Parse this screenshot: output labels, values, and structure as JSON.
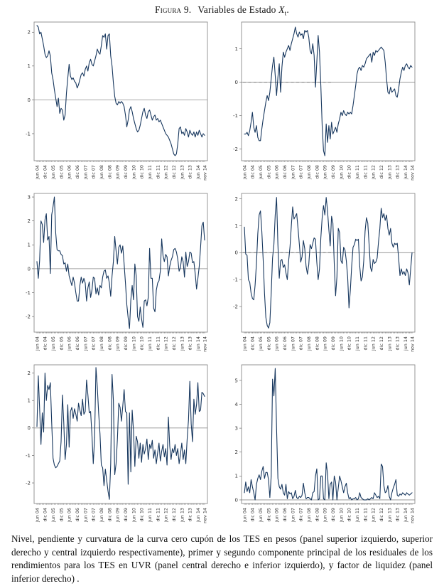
{
  "page": {
    "title": {
      "figure_label": "Figura 9.",
      "title_text": "Variables de Estado",
      "var_base": "X",
      "var_sub": "t",
      "suffix": "."
    },
    "caption": "Nivel, pendiente y curvatura de la curva cero cupón de los TES en pesos (panel superior izquierdo, superior derecho y central izquierdo respectivamente), primer y segundo componente principal de los residuales de los rendimientos para los TES en UVR (panel central derecho e inferior izquierdo), y factor de liquidez (panel inferior derecho) ."
  },
  "colors": {
    "line": "#17375e",
    "frame": "#8c8c8c",
    "zero_line": "#8c8c8c",
    "tick_text": "#333333"
  },
  "chart_data": [
    {
      "type": "line",
      "panel": "superior-izquierdo",
      "series_name": "Nivel curva cero cupón TES pesos",
      "ylim": [
        -1.8,
        2.3
      ],
      "y_ticks": [
        -1,
        0,
        1,
        2
      ],
      "x_unit": "meses desde jun 2004",
      "x_tick_months": [
        0,
        6,
        12,
        18,
        24,
        30,
        36,
        42,
        48,
        54,
        60,
        66,
        72,
        78,
        84,
        90,
        96,
        102,
        108,
        114,
        120,
        125
      ],
      "x_tick_labels": [
        "jun 04",
        "dic 04",
        "jun 05",
        "dic 05",
        "jun 06",
        "dic 06",
        "jun 07",
        "dic 07",
        "jun 08",
        "dic 08",
        "jun 09",
        "dic 09",
        "jun 10",
        "dic 10",
        "jun 11",
        "dic 11",
        "jun 12",
        "dic 12",
        "jun 13",
        "dic 13",
        "jun 14",
        "nov 14"
      ],
      "zero_line_dashed": false,
      "values": [
        2.2,
        2.15,
        1.95,
        2.0,
        1.8,
        1.6,
        1.35,
        1.25,
        1.3,
        1.45,
        1.3,
        0.8,
        0.6,
        0.3,
        0.05,
        -0.2,
        0.05,
        -0.4,
        -0.25,
        -0.3,
        -0.6,
        -0.45,
        0.2,
        0.65,
        1.05,
        0.7,
        0.6,
        0.65,
        0.55,
        0.5,
        0.35,
        0.45,
        0.6,
        0.75,
        0.8,
        0.7,
        0.9,
        1.0,
        0.85,
        1.1,
        1.2,
        1.05,
        1.0,
        1.15,
        1.3,
        1.5,
        1.4,
        1.35,
        1.6,
        1.9,
        1.85,
        1.95,
        1.5,
        1.9,
        1.95,
        1.3,
        1.0,
        0.5,
        0.1,
        -0.1,
        -0.15,
        -0.05,
        -0.1,
        -0.05,
        -0.1,
        -0.2,
        -0.45,
        -0.8,
        -0.6,
        -0.3,
        -0.2,
        -0.35,
        -0.55,
        -0.7,
        -0.85,
        -0.95,
        -0.9,
        -0.75,
        -0.55,
        -0.35,
        -0.25,
        -0.45,
        -0.55,
        -0.35,
        -0.3,
        -0.45,
        -0.6,
        -0.5,
        -0.45,
        -0.6,
        -0.55,
        -0.65,
        -0.6,
        -0.7,
        -0.8,
        -0.9,
        -1.0,
        -1.05,
        -1.1,
        -1.2,
        -1.3,
        -1.45,
        -1.6,
        -1.65,
        -1.6,
        -1.3,
        -0.85,
        -0.8,
        -1.0,
        -0.95,
        -1.05,
        -0.85,
        -0.95,
        -1.1,
        -0.9,
        -1.0,
        -1.05,
        -0.95,
        -1.1,
        -0.95,
        -1.05,
        -0.9,
        -1.0,
        -1.1,
        -1.0,
        -1.05
      ]
    },
    {
      "type": "line",
      "panel": "superior-derecho",
      "series_name": "Pendiente curva cero cupón TES pesos",
      "ylim": [
        -2.35,
        1.8
      ],
      "y_ticks": [
        -2,
        -1,
        0,
        1
      ],
      "x_unit": "meses desde jun 2004",
      "x_tick_months": [
        0,
        6,
        12,
        18,
        24,
        30,
        36,
        42,
        48,
        54,
        60,
        66,
        72,
        78,
        84,
        90,
        96,
        102,
        108,
        114,
        120,
        125
      ],
      "x_tick_labels": [
        "jun 04",
        "dic 04",
        "jun 05",
        "dic 05",
        "jun 06",
        "dic 06",
        "jun 07",
        "dic 07",
        "jun 08",
        "dic 08",
        "jun 09",
        "dic 09",
        "jun 10",
        "dic 10",
        "jun 11",
        "dic 11",
        "jun 12",
        "dic 12",
        "jun 13",
        "dic 13",
        "jun 14",
        "nov 14"
      ],
      "zero_line_dashed": true,
      "values": [
        -1.55,
        -1.55,
        -1.5,
        -1.6,
        -1.45,
        -1.2,
        -0.9,
        -1.35,
        -1.5,
        -1.3,
        -1.65,
        -1.75,
        -1.75,
        -1.4,
        -1.1,
        -0.85,
        -0.6,
        -0.4,
        -0.55,
        -0.3,
        0.1,
        0.5,
        0.75,
        0.2,
        -0.4,
        0.15,
        0.55,
        -0.3,
        0.45,
        0.9,
        0.75,
        0.9,
        1.0,
        1.1,
        0.95,
        1.15,
        1.3,
        1.45,
        1.65,
        1.45,
        1.35,
        1.5,
        1.4,
        1.45,
        1.3,
        1.55,
        1.5,
        1.55,
        1.35,
        0.95,
        0.85,
        1.15,
        0.8,
        -0.15,
        0.6,
        1.4,
        0.9,
        -0.1,
        -1.3,
        -2.05,
        -2.2,
        -1.25,
        -1.8,
        -1.3,
        -1.7,
        -1.2,
        -1.55,
        -1.45,
        -1.35,
        -1.5,
        -1.25,
        -1.1,
        -0.9,
        -1.0,
        -0.85,
        -0.95,
        -1.0,
        -0.9,
        -0.95,
        -0.9,
        -0.95,
        -0.7,
        -0.4,
        -0.1,
        0.25,
        0.4,
        0.45,
        0.35,
        0.5,
        0.45,
        0.55,
        0.7,
        0.75,
        0.8,
        0.85,
        0.6,
        0.9,
        0.8,
        0.95,
        0.9,
        0.95,
        1.0,
        1.05,
        1.0,
        0.95,
        0.6,
        0.1,
        -0.3,
        -0.35,
        -0.15,
        -0.3,
        -0.25,
        -0.2,
        -0.4,
        -0.45,
        -0.2,
        0.1,
        0.3,
        0.45,
        0.35,
        0.5,
        0.55,
        0.45,
        0.4,
        0.5,
        0.45
      ]
    },
    {
      "type": "line",
      "panel": "central-izquierdo",
      "series_name": "Curvatura curva cero cupón TES pesos",
      "ylim": [
        -2.65,
        3.15
      ],
      "y_ticks": [
        -2,
        -1,
        0,
        1,
        2,
        3
      ],
      "x_unit": "meses desde jun 2004",
      "x_tick_months": [
        0,
        6,
        12,
        18,
        24,
        30,
        36,
        42,
        48,
        54,
        60,
        66,
        72,
        78,
        84,
        90,
        96,
        102,
        108,
        114,
        120,
        125
      ],
      "x_tick_labels": [
        "jun 04",
        "dic 04",
        "jun 05",
        "dic 05",
        "jun 06",
        "dic 06",
        "jun 07",
        "dic 07",
        "jun 08",
        "dic 08",
        "jun 09",
        "dic 09",
        "jun 10",
        "dic 10",
        "jun 11",
        "dic 11",
        "jun 12",
        "dic 12",
        "jun 13",
        "dic 13",
        "jun 14",
        "nov 14"
      ],
      "zero_line_dashed": false,
      "values": [
        0.3,
        -0.4,
        0.35,
        2.0,
        1.85,
        1.1,
        2.05,
        2.3,
        1.2,
        1.35,
        -0.2,
        2.25,
        2.6,
        3.0,
        1.5,
        0.8,
        0.75,
        0.75,
        0.6,
        0.55,
        0.2,
        0.25,
        -0.1,
        0.2,
        -0.3,
        -0.5,
        -0.7,
        -0.35,
        -0.6,
        -1.0,
        -1.35,
        -1.35,
        -0.7,
        -0.35,
        -0.6,
        -0.4,
        -0.6,
        -1.35,
        -0.8,
        -0.55,
        -1.2,
        -0.9,
        -0.35,
        -0.4,
        -1.05,
        -0.8,
        -1.1,
        -0.7,
        -0.8,
        -0.35,
        -0.1,
        -0.05,
        -0.4,
        -0.3,
        -0.6,
        -1.15,
        -0.3,
        0.3,
        1.35,
        0.75,
        0.2,
        0.9,
        1.0,
        0.65,
        0.95,
        0.2,
        -0.6,
        -1.5,
        -2.05,
        -2.5,
        -1.3,
        -0.7,
        -1.3,
        0.2,
        -0.3,
        -2.0,
        -2.2,
        -1.6,
        -2.1,
        -2.45,
        -1.35,
        -1.3,
        -1.55,
        -1.2,
        0.85,
        -0.4,
        -0.4,
        -1.65,
        -1.8,
        -0.9,
        -0.6,
        -0.5,
        -0.1,
        1.25,
        0.55,
        0.3,
        0.6,
        0.5,
        -0.3,
        0.1,
        0.35,
        0.5,
        0.8,
        0.85,
        0.7,
        0.4,
        -0.1,
        0.05,
        0.5,
        0.3,
        -0.35,
        0.7,
        0.1,
        0.3,
        0.7,
        0.65,
        0.25,
        0.3,
        -0.2,
        -0.85,
        -0.4,
        0.1,
        0.9,
        1.8,
        1.95,
        1.2
      ]
    },
    {
      "type": "line",
      "panel": "central-derecho",
      "series_name": "Primer componente principal residuales TES UVR",
      "ylim": [
        -2.95,
        2.2
      ],
      "y_ticks": [
        -2,
        -1,
        0,
        1,
        2
      ],
      "x_unit": "meses desde jun 2004",
      "x_tick_months": [
        0,
        6,
        12,
        18,
        24,
        30,
        36,
        42,
        48,
        54,
        60,
        66,
        72,
        78,
        84,
        90,
        96,
        102,
        108,
        114,
        120,
        125
      ],
      "x_tick_labels": [
        "jun 04",
        "dic 04",
        "jun 05",
        "dic 05",
        "jun 06",
        "dic 06",
        "jun 07",
        "dic 07",
        "jun 08",
        "dic 08",
        "jun 09",
        "dic 09",
        "jun 10",
        "dic 10",
        "jun 11",
        "dic 11",
        "jun 12",
        "dic 12",
        "jun 13",
        "dic 13",
        "jun 14",
        "nov 14"
      ],
      "zero_line_dashed": true,
      "values": [
        0.95,
        -0.05,
        -0.1,
        -1.0,
        -1.1,
        -1.5,
        -1.7,
        -1.75,
        -1.2,
        -0.4,
        0.7,
        1.4,
        1.55,
        0.8,
        -0.25,
        -1.5,
        -2.4,
        -2.7,
        -2.8,
        -2.6,
        -1.5,
        -0.2,
        0.3,
        1.4,
        2.05,
        0.3,
        -0.95,
        -0.3,
        -0.25,
        -0.55,
        -0.45,
        -0.75,
        -1.0,
        -0.3,
        0.2,
        1.0,
        1.7,
        1.25,
        1.35,
        1.45,
        0.9,
        0.3,
        -0.35,
        -0.15,
        0.45,
        0.15,
        -0.5,
        -0.8,
        -0.45,
        0.3,
        0.15,
        0.35,
        0.55,
        0.5,
        -0.35,
        -1.0,
        -0.6,
        0.55,
        1.3,
        1.75,
        1.4,
        2.05,
        1.55,
        0.85,
        0.25,
        1.35,
        1.1,
        -0.4,
        -1.6,
        -0.9,
        0.9,
        0.75,
        -0.3,
        -0.4,
        0.2,
        0.1,
        -0.3,
        -0.9,
        -2.05,
        -1.4,
        -0.5,
        0.2,
        0.3,
        0.5,
        0.45,
        0.5,
        -0.5,
        -1.05,
        -0.9,
        -0.3,
        0.8,
        1.3,
        1.1,
        0.3,
        -0.55,
        -0.7,
        -0.25,
        -0.4,
        -0.35,
        -0.2,
        0.4,
        0.9,
        1.65,
        1.3,
        1.45,
        1.2,
        1.4,
        0.9,
        0.65,
        0.9,
        0.35,
        0.2,
        0.35,
        0.3,
        0.35,
        -0.2,
        -0.85,
        -0.6,
        -0.8,
        -0.7,
        -0.85,
        -0.6,
        -0.75,
        -1.2,
        -0.6,
        0.0
      ]
    },
    {
      "type": "line",
      "panel": "inferior-izquierdo",
      "series_name": "Segundo componente principal residuales TES UVR",
      "ylim": [
        -2.75,
        2.3
      ],
      "y_ticks": [
        -2,
        -1,
        0,
        1,
        2
      ],
      "x_unit": "meses desde jun 2004",
      "x_tick_months": [
        0,
        6,
        12,
        18,
        24,
        30,
        36,
        42,
        48,
        54,
        60,
        66,
        72,
        78,
        84,
        90,
        96,
        102,
        108,
        114,
        120,
        125
      ],
      "x_tick_labels": [
        "jun 04",
        "dic 04",
        "jun 05",
        "dic 05",
        "jun 06",
        "dic 06",
        "jun 07",
        "dic 07",
        "jun 08",
        "dic 08",
        "jun 09",
        "dic 09",
        "jun 10",
        "dic 10",
        "jun 11",
        "dic 11",
        "jun 12",
        "dic 12",
        "jun 13",
        "dic 13",
        "jun 14",
        "nov 14"
      ],
      "zero_line_dashed": false,
      "values": [
        0.05,
        1.9,
        0.7,
        -0.6,
        0.55,
        -0.15,
        2.0,
        1.0,
        1.55,
        1.4,
        1.65,
        0.2,
        -1.1,
        -1.35,
        -1.45,
        -1.4,
        -1.3,
        -1.2,
        -0.5,
        1.2,
        0.2,
        -1.15,
        -0.6,
        0.85,
        -0.7,
        0.6,
        0.75,
        0.35,
        0.7,
        0.5,
        0.25,
        0.9,
        0.65,
        0.45,
        1.05,
        0.5,
        0.6,
        1.75,
        1.2,
        0.55,
        0.6,
        -0.25,
        -1.3,
        -0.35,
        2.2,
        1.5,
        0.55,
        -0.2,
        -1.35,
        -1.45,
        -2.1,
        -1.5,
        -1.9,
        -2.3,
        -2.6,
        -1.3,
        1.95,
        1.0,
        -1.7,
        -1.3,
        -0.4,
        0.9,
        0.75,
        0.25,
        0.8,
        1.4,
        0.6,
        0.55,
        -2.05,
        0.55,
        -1.6,
        0.65,
        -0.1,
        -1.4,
        -0.3,
        -0.5,
        -1.1,
        -0.55,
        -1.25,
        -0.6,
        -0.95,
        -0.75,
        -0.4,
        -1.15,
        -0.6,
        -0.75,
        -0.45,
        -1.1,
        -0.8,
        -1.3,
        -0.9,
        -0.55,
        -1.2,
        -0.85,
        -0.6,
        -1.05,
        -0.75,
        -1.35,
        0.4,
        -0.65,
        -1.15,
        -0.75,
        -0.9,
        -0.6,
        -1.0,
        -0.75,
        -1.3,
        -0.95,
        -0.55,
        -1.15,
        -0.8,
        -1.3,
        -0.4,
        0.3,
        1.7,
        0.15,
        -0.5,
        1.05,
        0.5,
        0.85,
        1.65,
        0.6,
        0.65,
        1.3,
        1.25,
        1.15
      ]
    },
    {
      "type": "line",
      "panel": "inferior-derecho",
      "series_name": "Factor de liquidez",
      "ylim": [
        -0.15,
        5.65
      ],
      "y_ticks": [
        0,
        1,
        2,
        3,
        4,
        5
      ],
      "x_unit": "meses desde jun 2004",
      "x_tick_months": [
        0,
        6,
        12,
        18,
        24,
        30,
        36,
        42,
        48,
        54,
        60,
        66,
        72,
        78,
        84,
        90,
        96,
        102,
        108,
        114,
        120,
        125
      ],
      "x_tick_labels": [
        "jun 04",
        "dic 04",
        "jun 05",
        "dic 05",
        "jun 06",
        "dic 06",
        "jun 07",
        "dic 07",
        "jun 08",
        "dic 08",
        "jun 09",
        "dic 09",
        "jun 10",
        "dic 10",
        "jun 11",
        "dic 11",
        "jun 12",
        "dic 12",
        "jun 13",
        "dic 13",
        "jun 14",
        "nov 14"
      ],
      "zero_line_dashed": false,
      "values": [
        0.3,
        0.75,
        0.35,
        0.55,
        0.3,
        0.85,
        0.55,
        0.3,
        0.0,
        0.65,
        0.9,
        1.05,
        0.85,
        1.2,
        1.4,
        0.9,
        1.15,
        1.15,
        0.85,
        0.1,
        1.0,
        5.05,
        4.35,
        5.5,
        3.0,
        0.9,
        0.55,
        0.45,
        0.65,
        0.3,
        0.2,
        0.65,
        0.05,
        0.35,
        0.25,
        0.3,
        0.05,
        0.15,
        0.4,
        0.1,
        0.05,
        0.15,
        0.1,
        0.2,
        0.7,
        0.3,
        0.05,
        0.1,
        0.1,
        0.05,
        0.0,
        0.3,
        0.35,
        1.0,
        1.3,
        0.0,
        0.05,
        1.0,
        1.0,
        0.05,
        0.0,
        1.55,
        1.1,
        0.05,
        0.65,
        0.75,
        0.0,
        1.0,
        0.75,
        0.0,
        0.5,
        1.0,
        0.8,
        0.55,
        0.3,
        0.55,
        0.7,
        0.3,
        0.05,
        0.1,
        0.0,
        0.05,
        0.05,
        0.1,
        0.0,
        0.05,
        0.3,
        0.1,
        0.05,
        0.0,
        0.0,
        0.0,
        0.05,
        0.0,
        0.05,
        0.1,
        0.05,
        0.3,
        0.2,
        0.1,
        0.15,
        0.05,
        1.5,
        1.4,
        0.6,
        0.3,
        0.35,
        0.6,
        0.15,
        0.0,
        0.3,
        0.5,
        0.65,
        0.85,
        0.2,
        0.15,
        0.25,
        0.2,
        0.3,
        0.25,
        0.2,
        0.3,
        0.25,
        0.2,
        0.25,
        0.3
      ]
    }
  ]
}
